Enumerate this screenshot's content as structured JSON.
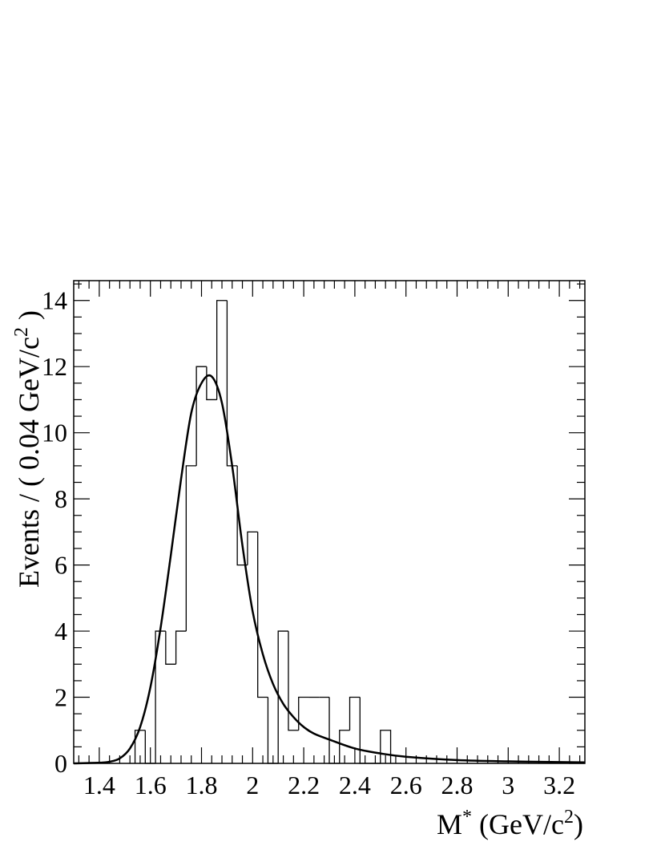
{
  "chart_data": {
    "type": "histogram",
    "xlabel": "M* (GeV/c²)",
    "xlabel_parts": {
      "base": "M",
      "sup": "*",
      "unit_open": "(GeV/c",
      "unit_sup": "2",
      "unit_close": ")"
    },
    "ylabel": "Events / ( 0.04 GeV/c² )",
    "ylabel_parts": {
      "main": "Events / ( 0.04 GeV/c",
      "sup": "2",
      "close": " )"
    },
    "xlim": [
      1.3,
      3.3
    ],
    "ylim": [
      0,
      14.6
    ],
    "x_ticks": [
      1.4,
      1.6,
      1.8,
      2.0,
      2.2,
      2.4,
      2.6,
      2.8,
      3.0,
      3.2
    ],
    "x_tick_labels": [
      "1.4",
      "1.6",
      "1.8",
      "2",
      "2.2",
      "2.4",
      "2.6",
      "2.8",
      "3",
      "3.2"
    ],
    "y_ticks": [
      0,
      2,
      4,
      6,
      8,
      10,
      12,
      14
    ],
    "y_tick_labels": [
      "0",
      "2",
      "4",
      "6",
      "8",
      "10",
      "12",
      "14"
    ],
    "bin_width": 0.04,
    "bins": [
      {
        "low": 1.54,
        "count": 1
      },
      {
        "low": 1.58,
        "count": 0
      },
      {
        "low": 1.62,
        "count": 4
      },
      {
        "low": 1.66,
        "count": 3
      },
      {
        "low": 1.7,
        "count": 4
      },
      {
        "low": 1.74,
        "count": 9
      },
      {
        "low": 1.78,
        "count": 12
      },
      {
        "low": 1.82,
        "count": 11
      },
      {
        "low": 1.86,
        "count": 14
      },
      {
        "low": 1.9,
        "count": 9
      },
      {
        "low": 1.94,
        "count": 6
      },
      {
        "low": 1.98,
        "count": 7
      },
      {
        "low": 2.02,
        "count": 2
      },
      {
        "low": 2.06,
        "count": 0
      },
      {
        "low": 2.1,
        "count": 4
      },
      {
        "low": 2.14,
        "count": 1
      },
      {
        "low": 2.18,
        "count": 2
      },
      {
        "low": 2.22,
        "count": 2
      },
      {
        "low": 2.26,
        "count": 2
      },
      {
        "low": 2.3,
        "count": 0
      },
      {
        "low": 2.34,
        "count": 1
      },
      {
        "low": 2.38,
        "count": 2
      },
      {
        "low": 2.42,
        "count": 0
      },
      {
        "low": 2.46,
        "count": 0
      },
      {
        "low": 2.5,
        "count": 1
      }
    ],
    "fit_curve": {
      "x": [
        1.3,
        1.4,
        1.44,
        1.48,
        1.52,
        1.56,
        1.6,
        1.64,
        1.68,
        1.72,
        1.76,
        1.8,
        1.84,
        1.88,
        1.92,
        1.96,
        2.0,
        2.04,
        2.08,
        2.12,
        2.16,
        2.2,
        2.24,
        2.3,
        2.4,
        2.5,
        2.6,
        2.8,
        3.0,
        3.2,
        3.3
      ],
      "y": [
        0.0,
        0.02,
        0.05,
        0.15,
        0.45,
        1.1,
        2.3,
        4.1,
        6.3,
        8.6,
        10.6,
        11.5,
        11.7,
        10.9,
        9.0,
        6.6,
        4.6,
        3.3,
        2.4,
        1.8,
        1.4,
        1.1,
        0.9,
        0.72,
        0.45,
        0.3,
        0.2,
        0.1,
        0.06,
        0.04,
        0.03
      ]
    },
    "grid": false,
    "colors": {
      "line": "#000000",
      "background": "#ffffff"
    }
  }
}
